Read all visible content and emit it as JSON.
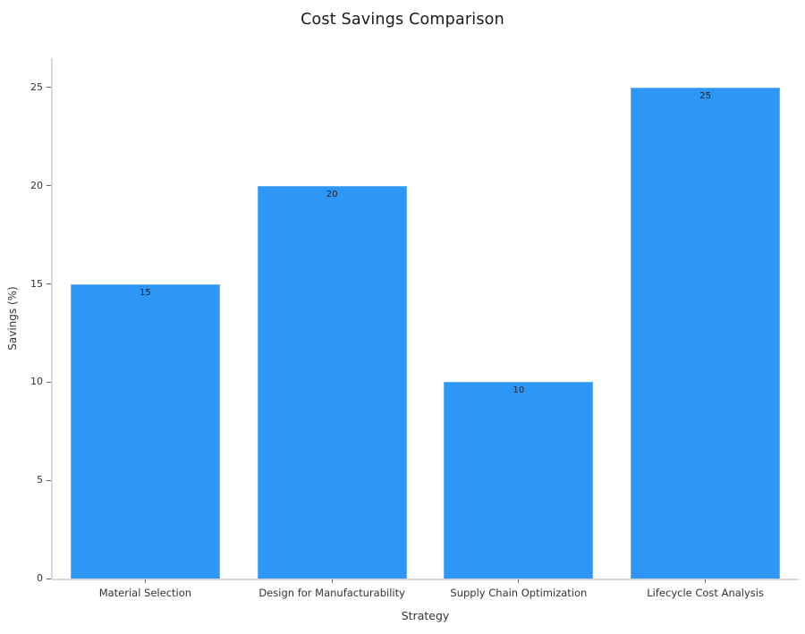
{
  "chart_data": {
    "type": "bar",
    "title": "Cost Savings Comparison",
    "xlabel": "Strategy",
    "ylabel": "Savings (%)",
    "categories": [
      "Material Selection",
      "Design for Manufacturability",
      "Supply Chain Optimization",
      "Lifecycle Cost Analysis"
    ],
    "values": [
      15,
      20,
      10,
      25
    ],
    "bar_labels": [
      "15",
      "20",
      "10",
      "25"
    ],
    "yticks": [
      0,
      5,
      10,
      15,
      20,
      25
    ],
    "ylim": [
      0,
      26.5
    ],
    "grid": false,
    "legend": "none",
    "bar_color": "#2e96f5",
    "bar_border_color": "#63b1f9",
    "axis_line_color": "#d9d9d9",
    "tick_mark_color": "#666666",
    "tick_text_color": "#333333",
    "bar_label_color": "#222222",
    "title_color": "#1a1a1a"
  }
}
